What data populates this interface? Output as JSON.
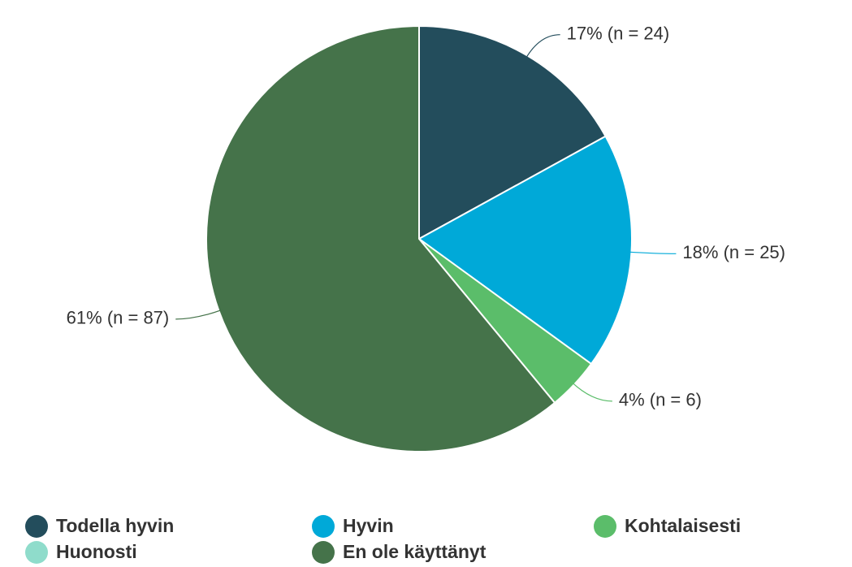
{
  "chart_data": {
    "type": "pie",
    "categories": [
      "Todella hyvin",
      "Hyvin",
      "Kohtalaisesti",
      "Huonosti",
      "En ole käyttänyt"
    ],
    "values": [
      17,
      18,
      4,
      0,
      61
    ],
    "value_labels": [
      "17% (n = 24)",
      "18% (n = 25)",
      "4% (n = 6)",
      null,
      "61% (n = 87)"
    ],
    "colors": [
      "#234d5c",
      "#00a9d8",
      "#5bbd6a",
      "#8fdccb",
      "#45734a"
    ],
    "legend": "bottom"
  }
}
